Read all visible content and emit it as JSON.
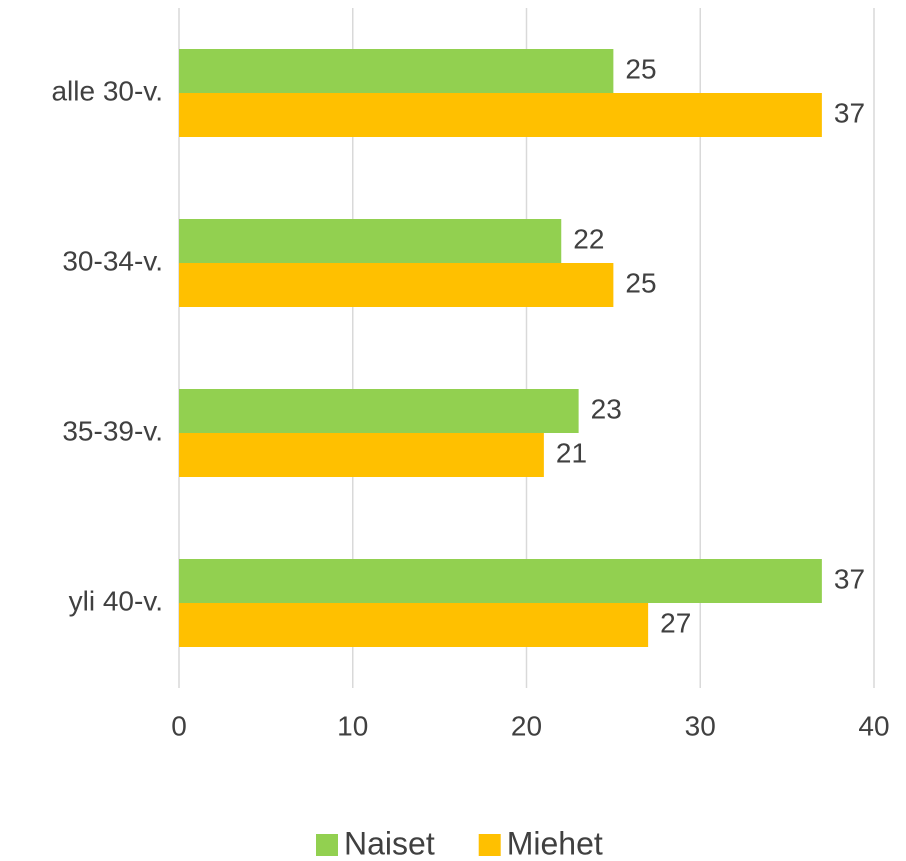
{
  "chart_data": {
    "type": "barh",
    "categories": [
      "alle 30-v.",
      "30-34-v.",
      "35-39-v.",
      "yli 40-v."
    ],
    "series": [
      {
        "name": "Naiset",
        "color": "#92d050",
        "values": [
          25,
          22,
          23,
          37
        ]
      },
      {
        "name": "Miehet",
        "color": "#ffc000",
        "values": [
          37,
          25,
          21,
          27
        ]
      }
    ],
    "xlim": [
      0,
      40
    ],
    "xticks": [
      0,
      10,
      20,
      30,
      40
    ],
    "grid": true,
    "legend": "bottom"
  }
}
